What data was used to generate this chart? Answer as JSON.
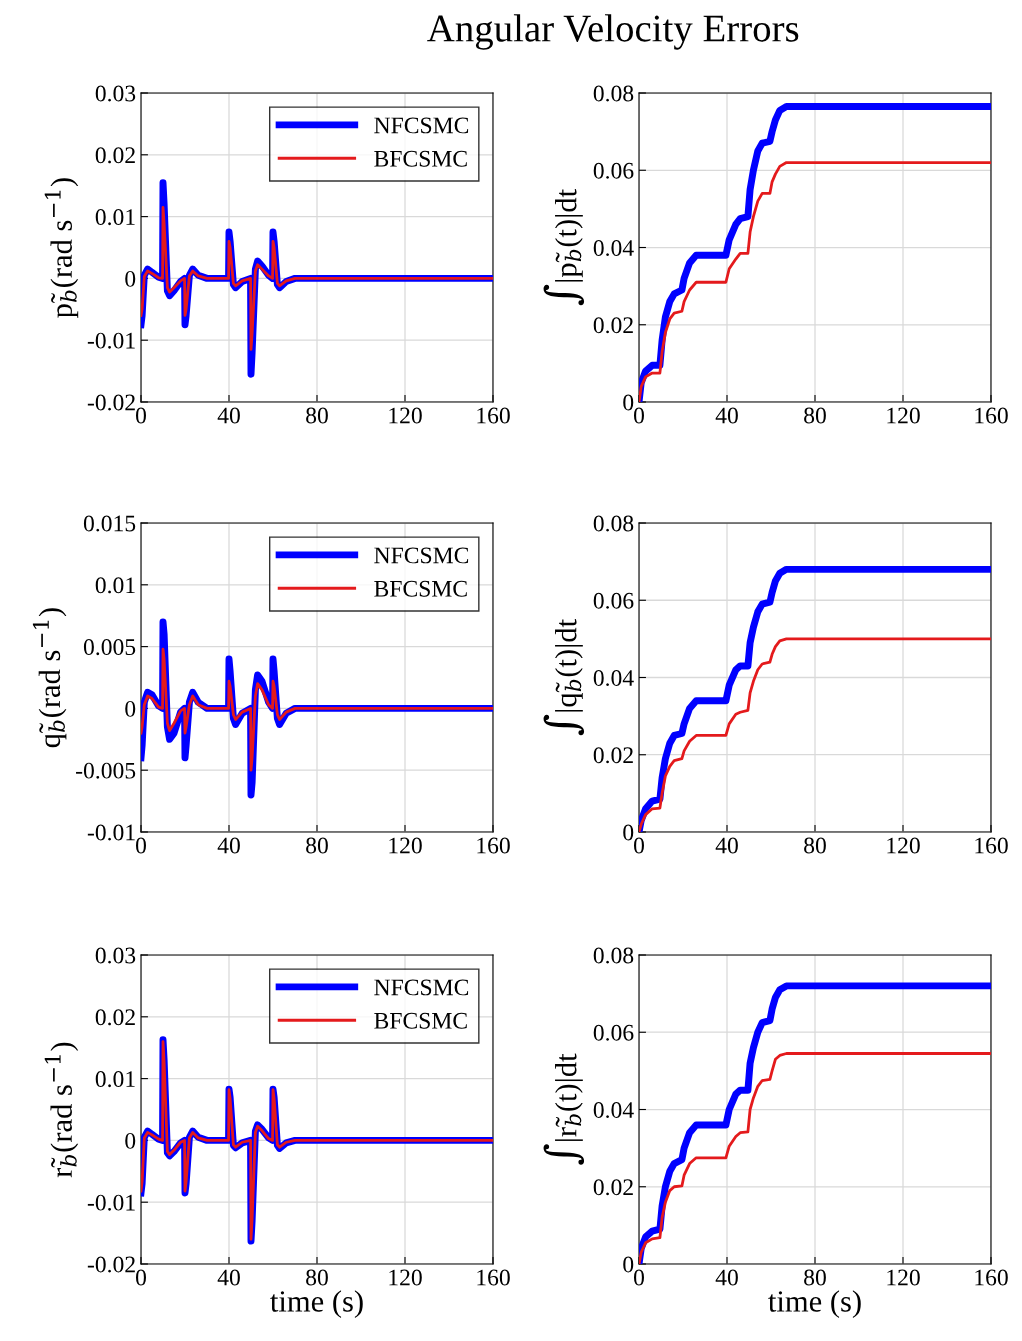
{
  "chart_data": [
    {
      "type": "line",
      "title": "Angular Velocity Errors",
      "ylabel": "p̃$_{b}$(rad s$^{−1}$)",
      "legend": "top right",
      "grid": true,
      "xlim": [
        0,
        160
      ],
      "xticks": [
        0,
        40,
        80,
        120,
        160
      ],
      "ylim": [
        -0.02,
        0.03
      ],
      "yticks": [
        -0.02,
        -0.01,
        0,
        0.01,
        0.02,
        0.03
      ],
      "x": [
        0,
        0.5,
        1.5,
        3,
        5,
        8,
        9.8,
        10,
        10.5,
        12,
        13,
        15,
        18,
        19.8,
        20,
        20.5,
        22,
        23.5,
        26,
        30,
        39.8,
        40,
        40.5,
        42,
        43,
        46,
        49.8,
        50,
        50.5,
        52,
        53,
        55,
        58,
        59.8,
        60,
        60.5,
        62,
        63,
        66,
        70,
        160
      ],
      "series": [
        {
          "name": "NFCSMC",
          "color": "#0000ff",
          "values": [
            -0.0075,
            -0.006,
            0.0005,
            0.0015,
            0.001,
            0.0002,
            0,
            0.0155,
            0.012,
            -0.002,
            -0.0028,
            -0.002,
            -0.0005,
            0,
            -0.0075,
            -0.006,
            0.0005,
            0.0015,
            0.0005,
            0,
            0,
            0.0075,
            0.006,
            -0.001,
            -0.0015,
            -0.0005,
            0,
            -0.0155,
            -0.012,
            0.0015,
            0.0028,
            0.002,
            0.0005,
            0,
            0.0075,
            0.006,
            -0.001,
            -0.0015,
            -0.0005,
            0,
            0
          ]
        },
        {
          "name": "BFCSMC",
          "color": "#e41a1c",
          "values": [
            -0.006,
            -0.005,
            0.0003,
            0.0012,
            0.0008,
            0.0001,
            0,
            0.0115,
            0.009,
            -0.0015,
            -0.0022,
            -0.0015,
            -0.0004,
            0,
            -0.006,
            -0.005,
            0.0004,
            0.0012,
            0.0004,
            0,
            0,
            0.006,
            0.005,
            -0.0008,
            -0.0012,
            -0.0004,
            0,
            -0.0115,
            -0.009,
            0.0012,
            0.0022,
            0.0015,
            0.0004,
            0,
            0.006,
            0.005,
            -0.0008,
            -0.0012,
            -0.0004,
            0,
            0
          ]
        }
      ]
    },
    {
      "type": "line",
      "ylabel": "∫|p̃$_{b}$(t)|dt",
      "grid": true,
      "xlim": [
        0,
        160
      ],
      "xticks": [
        0,
        40,
        80,
        120,
        160
      ],
      "ylim": [
        0,
        0.08
      ],
      "yticks": [
        0,
        0.02,
        0.04,
        0.06,
        0.08
      ],
      "x": [
        0,
        1,
        3,
        6,
        9.5,
        10.5,
        12,
        14,
        16,
        19.5,
        20.5,
        23,
        26,
        39.5,
        41,
        44,
        46,
        49.5,
        50.5,
        52,
        54,
        56,
        59.5,
        60.5,
        62,
        64,
        67,
        160
      ],
      "series": [
        {
          "color": "#0000ff",
          "values": [
            0,
            0.005,
            0.008,
            0.0095,
            0.0095,
            0.016,
            0.022,
            0.026,
            0.028,
            0.029,
            0.032,
            0.036,
            0.038,
            0.038,
            0.042,
            0.046,
            0.0475,
            0.048,
            0.055,
            0.06,
            0.065,
            0.067,
            0.0675,
            0.07,
            0.073,
            0.0755,
            0.0765,
            0.0765
          ]
        },
        {
          "color": "#e41a1c",
          "values": [
            0,
            0.004,
            0.0065,
            0.0075,
            0.0075,
            0.013,
            0.018,
            0.0215,
            0.023,
            0.0235,
            0.026,
            0.029,
            0.031,
            0.031,
            0.0345,
            0.037,
            0.0385,
            0.0385,
            0.044,
            0.048,
            0.052,
            0.054,
            0.054,
            0.057,
            0.059,
            0.061,
            0.062,
            0.062
          ]
        }
      ]
    },
    {
      "type": "line",
      "ylabel": "q̃$_{b}$(rad s$^{−1}$)",
      "legend": "top right",
      "grid": true,
      "xlim": [
        0,
        160
      ],
      "xticks": [
        0,
        40,
        80,
        120,
        160
      ],
      "ylim": [
        -0.01,
        0.015
      ],
      "yticks": [
        -0.01,
        -0.005,
        0,
        0.005,
        0.01,
        0.015
      ],
      "x": [
        0,
        0.5,
        1.5,
        3,
        5,
        8,
        9.8,
        10,
        10.5,
        12,
        13,
        15,
        18,
        19.8,
        20,
        20.5,
        22,
        23.5,
        26,
        30,
        39.8,
        40,
        40.5,
        42,
        43,
        46,
        49.8,
        50,
        50.5,
        52,
        53,
        55,
        58,
        59.8,
        60,
        60.5,
        62,
        63,
        66,
        70,
        160
      ],
      "series": [
        {
          "name": "NFCSMC",
          "color": "#0000ff",
          "values": [
            -0.004,
            -0.003,
            0.0005,
            0.0013,
            0.0011,
            0.0002,
            0,
            0.007,
            0.006,
            -0.0015,
            -0.0025,
            -0.002,
            -0.0003,
            0,
            -0.004,
            -0.003,
            0.0005,
            0.0013,
            0.0005,
            0,
            0,
            0.004,
            0.003,
            -0.0008,
            -0.0013,
            -0.0004,
            0,
            -0.007,
            -0.006,
            0.0015,
            0.0027,
            0.0022,
            0.0005,
            0,
            0.004,
            0.003,
            -0.0008,
            -0.0013,
            -0.0004,
            0,
            0
          ]
        },
        {
          "name": "BFCSMC",
          "color": "#e41a1c",
          "values": [
            -0.002,
            -0.0015,
            0.0003,
            0.001,
            0.0008,
            0.0001,
            0,
            0.0048,
            0.004,
            -0.0012,
            -0.0018,
            -0.0012,
            -0.0002,
            0,
            -0.002,
            -0.0015,
            0.0003,
            0.001,
            0.0003,
            0,
            0,
            0.0022,
            0.0018,
            -0.0005,
            -0.0009,
            -0.0003,
            0,
            -0.005,
            -0.004,
            0.001,
            0.002,
            0.0015,
            0.0003,
            0,
            0.0022,
            0.0018,
            -0.0005,
            -0.0009,
            -0.0003,
            0,
            0
          ]
        }
      ]
    },
    {
      "type": "line",
      "ylabel": "∫|q̃$_{b}$(t)|dt",
      "grid": true,
      "xlim": [
        0,
        160
      ],
      "xticks": [
        0,
        40,
        80,
        120,
        160
      ],
      "ylim": [
        0,
        0.08
      ],
      "yticks": [
        0,
        0.02,
        0.04,
        0.06,
        0.08
      ],
      "x": [
        0,
        1,
        3,
        6,
        9.5,
        10.5,
        12,
        14,
        16,
        19.5,
        20.5,
        23,
        26,
        39.5,
        41,
        44,
        46,
        49.5,
        50.5,
        52,
        54,
        56,
        59.5,
        60.5,
        62,
        64,
        67,
        160
      ],
      "series": [
        {
          "color": "#0000ff",
          "values": [
            0,
            0.003,
            0.006,
            0.008,
            0.0085,
            0.014,
            0.019,
            0.023,
            0.025,
            0.0255,
            0.028,
            0.032,
            0.034,
            0.034,
            0.038,
            0.042,
            0.043,
            0.043,
            0.049,
            0.053,
            0.057,
            0.059,
            0.0595,
            0.062,
            0.065,
            0.067,
            0.068,
            0.068
          ]
        },
        {
          "color": "#e41a1c",
          "values": [
            0,
            0.002,
            0.0045,
            0.006,
            0.0062,
            0.01,
            0.0145,
            0.017,
            0.0185,
            0.019,
            0.021,
            0.0235,
            0.025,
            0.025,
            0.028,
            0.0305,
            0.031,
            0.0315,
            0.036,
            0.039,
            0.042,
            0.0435,
            0.044,
            0.046,
            0.048,
            0.0495,
            0.05,
            0.05
          ]
        }
      ]
    },
    {
      "type": "line",
      "ylabel": "r̃$_{b}$(rad s$^{−1}$)",
      "xlabel": "time (s)",
      "legend": "top right",
      "grid": true,
      "xlim": [
        0,
        160
      ],
      "xticks": [
        0,
        40,
        80,
        120,
        160
      ],
      "ylim": [
        -0.02,
        0.03
      ],
      "yticks": [
        -0.02,
        -0.01,
        0,
        0.01,
        0.02,
        0.03
      ],
      "x": [
        0,
        0.5,
        1.5,
        3,
        5,
        8,
        9.8,
        10,
        10.5,
        12,
        13,
        15,
        18,
        19.8,
        20,
        20.5,
        22,
        23.5,
        26,
        30,
        39.8,
        40,
        40.5,
        42,
        43,
        46,
        49.8,
        50,
        50.5,
        52,
        53,
        55,
        58,
        59.8,
        60,
        60.5,
        62,
        63,
        66,
        70,
        160
      ],
      "series": [
        {
          "name": "NFCSMC",
          "color": "#0000ff",
          "values": [
            -0.0085,
            -0.007,
            0.0005,
            0.0015,
            0.001,
            0.0002,
            0,
            0.0163,
            0.013,
            -0.002,
            -0.0025,
            -0.0018,
            -0.0004,
            0,
            -0.0085,
            -0.007,
            0.0005,
            0.0015,
            0.0005,
            0,
            0,
            0.0083,
            0.007,
            -0.0008,
            -0.0012,
            -0.0004,
            0,
            -0.0163,
            -0.013,
            0.0015,
            0.0025,
            0.0018,
            0.0004,
            0,
            0.0083,
            0.007,
            -0.0008,
            -0.0013,
            -0.0004,
            0,
            0
          ]
        },
        {
          "name": "BFCSMC",
          "color": "#e41a1c",
          "values": [
            -0.0082,
            -0.0067,
            0.0004,
            0.0013,
            0.0009,
            0.0002,
            0,
            0.016,
            0.0127,
            -0.0018,
            -0.0023,
            -0.0016,
            -0.0003,
            0,
            -0.0082,
            -0.0067,
            0.0004,
            0.0013,
            0.0004,
            0,
            0,
            0.0082,
            0.0068,
            -0.0007,
            -0.0011,
            -0.0003,
            0,
            -0.016,
            -0.0127,
            0.0013,
            0.0023,
            0.0016,
            0.0003,
            0,
            0.0082,
            0.0068,
            -0.0007,
            -0.0011,
            -0.0003,
            0,
            0
          ]
        }
      ]
    },
    {
      "type": "line",
      "ylabel": "∫|r̃$_{b}$(t)|dt",
      "xlabel": "time (s)",
      "grid": true,
      "xlim": [
        0,
        160
      ],
      "xticks": [
        0,
        40,
        80,
        120,
        160
      ],
      "ylim": [
        0,
        0.08
      ],
      "yticks": [
        0,
        0.02,
        0.04,
        0.06,
        0.08
      ],
      "x": [
        0,
        1,
        3,
        6,
        9.5,
        10.5,
        12,
        14,
        16,
        19.5,
        20.5,
        23,
        26,
        39.5,
        41,
        44,
        46,
        49.5,
        50.5,
        52,
        54,
        56,
        59.5,
        60.5,
        62,
        64,
        67,
        160
      ],
      "series": [
        {
          "color": "#0000ff",
          "values": [
            0,
            0.004,
            0.007,
            0.0085,
            0.009,
            0.015,
            0.02,
            0.024,
            0.026,
            0.027,
            0.03,
            0.034,
            0.036,
            0.036,
            0.04,
            0.044,
            0.045,
            0.045,
            0.052,
            0.056,
            0.06,
            0.0625,
            0.063,
            0.066,
            0.069,
            0.071,
            0.072,
            0.072
          ]
        },
        {
          "color": "#e41a1c",
          "values": [
            0,
            0.003,
            0.0055,
            0.0065,
            0.0068,
            0.012,
            0.016,
            0.019,
            0.02,
            0.0202,
            0.023,
            0.026,
            0.0275,
            0.0275,
            0.0305,
            0.033,
            0.034,
            0.0342,
            0.04,
            0.043,
            0.046,
            0.0475,
            0.0478,
            0.05,
            0.053,
            0.054,
            0.0545,
            0.0545
          ]
        }
      ]
    }
  ]
}
